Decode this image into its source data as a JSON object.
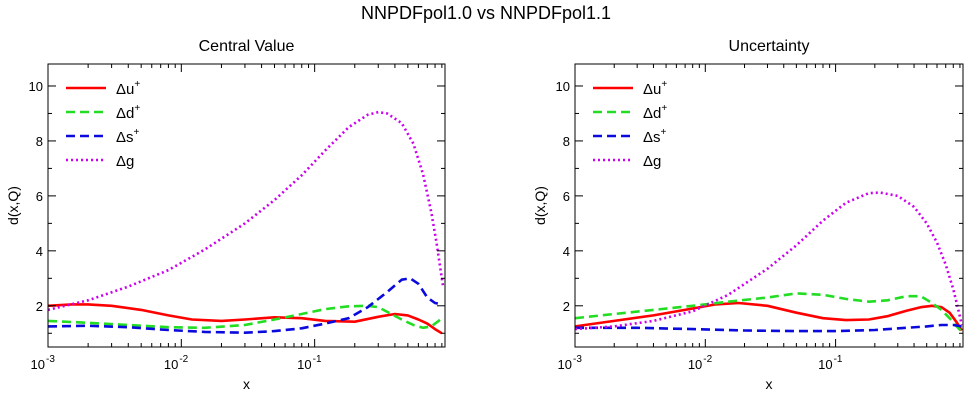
{
  "figure": {
    "title": "NNPDFpol1.0 vs NNPDFpol1.1"
  },
  "chart_data": [
    {
      "type": "line",
      "title": "Central Value",
      "xlabel": "x",
      "ylabel": "d(x,Q)",
      "xscale": "log",
      "xlim": [
        0.001,
        0.95
      ],
      "ylim": [
        0.5,
        10.8
      ],
      "xticks": [
        {
          "value": 0.001,
          "base": "10",
          "exp": "-3"
        },
        {
          "value": 0.01,
          "base": "10",
          "exp": "-2"
        },
        {
          "value": 0.1,
          "base": "10",
          "exp": "-1"
        }
      ],
      "yticks": [
        2,
        4,
        6,
        8,
        10
      ],
      "legend_position": "top-left",
      "series": [
        {
          "name": "Δu",
          "sup": "+",
          "color": "#ff0000",
          "dash": "solid",
          "x": [
            0.001,
            0.0015,
            0.002,
            0.003,
            0.005,
            0.008,
            0.012,
            0.02,
            0.03,
            0.05,
            0.08,
            0.12,
            0.2,
            0.3,
            0.4,
            0.5,
            0.6,
            0.7,
            0.8,
            0.9
          ],
          "y": [
            2.0,
            2.05,
            2.05,
            2.0,
            1.85,
            1.65,
            1.5,
            1.45,
            1.5,
            1.58,
            1.55,
            1.45,
            1.42,
            1.6,
            1.7,
            1.65,
            1.5,
            1.35,
            1.15,
            1.0
          ]
        },
        {
          "name": "Δd",
          "sup": "+",
          "color": "#22dd22",
          "dash": "dashed",
          "x": [
            0.001,
            0.002,
            0.004,
            0.008,
            0.015,
            0.03,
            0.05,
            0.08,
            0.12,
            0.18,
            0.25,
            0.3,
            0.35,
            0.45,
            0.55,
            0.65,
            0.75,
            0.85,
            0.9
          ],
          "y": [
            1.45,
            1.38,
            1.3,
            1.22,
            1.2,
            1.3,
            1.5,
            1.7,
            1.88,
            1.98,
            2.0,
            1.95,
            1.78,
            1.5,
            1.3,
            1.2,
            1.25,
            1.45,
            1.55
          ]
        },
        {
          "name": "Δs",
          "sup": "+",
          "color": "#0a0add",
          "dash": "dashed",
          "x": [
            0.001,
            0.002,
            0.004,
            0.008,
            0.015,
            0.03,
            0.05,
            0.08,
            0.12,
            0.18,
            0.25,
            0.35,
            0.45,
            0.52,
            0.6,
            0.7,
            0.8,
            0.9
          ],
          "y": [
            1.25,
            1.27,
            1.22,
            1.12,
            1.05,
            1.02,
            1.08,
            1.18,
            1.35,
            1.55,
            1.95,
            2.5,
            2.95,
            3.0,
            2.8,
            2.3,
            2.1,
            2.05
          ]
        },
        {
          "name": "Δg",
          "sup": "",
          "color": "#cc00ee",
          "dash": "dotted",
          "x": [
            0.001,
            0.002,
            0.004,
            0.008,
            0.015,
            0.03,
            0.05,
            0.08,
            0.12,
            0.18,
            0.25,
            0.3,
            0.35,
            0.45,
            0.55,
            0.65,
            0.75,
            0.82,
            0.88,
            0.92
          ],
          "y": [
            1.85,
            2.2,
            2.7,
            3.3,
            4.05,
            5.0,
            5.85,
            6.75,
            7.65,
            8.5,
            8.95,
            9.05,
            9.0,
            8.65,
            7.9,
            6.8,
            5.4,
            4.3,
            3.3,
            2.7
          ]
        }
      ]
    },
    {
      "type": "line",
      "title": "Uncertainty",
      "xlabel": "x",
      "ylabel": "d(x,Q)",
      "xscale": "log",
      "xlim": [
        0.001,
        0.95
      ],
      "ylim": [
        0.5,
        10.8
      ],
      "xticks": [
        {
          "value": 0.001,
          "base": "10",
          "exp": "-3"
        },
        {
          "value": 0.01,
          "base": "10",
          "exp": "-2"
        },
        {
          "value": 0.1,
          "base": "10",
          "exp": "-1"
        }
      ],
      "yticks": [
        2,
        4,
        6,
        8,
        10
      ],
      "legend_position": "top-left",
      "series": [
        {
          "name": "Δu",
          "sup": "+",
          "color": "#ff0000",
          "dash": "solid",
          "x": [
            0.001,
            0.002,
            0.004,
            0.008,
            0.012,
            0.018,
            0.03,
            0.05,
            0.08,
            0.12,
            0.18,
            0.25,
            0.35,
            0.45,
            0.55,
            0.65,
            0.75,
            0.85,
            0.93
          ],
          "y": [
            1.25,
            1.45,
            1.65,
            1.9,
            2.05,
            2.1,
            2.0,
            1.75,
            1.55,
            1.48,
            1.5,
            1.62,
            1.82,
            1.95,
            2.0,
            1.95,
            1.75,
            1.4,
            1.1
          ]
        },
        {
          "name": "Δd",
          "sup": "+",
          "color": "#22dd22",
          "dash": "dashed",
          "x": [
            0.001,
            0.002,
            0.004,
            0.008,
            0.015,
            0.03,
            0.05,
            0.08,
            0.12,
            0.18,
            0.25,
            0.35,
            0.45,
            0.55,
            0.65,
            0.75,
            0.85,
            0.93
          ],
          "y": [
            1.55,
            1.7,
            1.85,
            2.0,
            2.15,
            2.3,
            2.45,
            2.4,
            2.25,
            2.15,
            2.2,
            2.35,
            2.35,
            2.1,
            1.85,
            1.55,
            1.25,
            1.05
          ]
        },
        {
          "name": "Δs",
          "sup": "+",
          "color": "#0a0add",
          "dash": "dashed",
          "x": [
            0.001,
            0.003,
            0.008,
            0.02,
            0.05,
            0.1,
            0.2,
            0.35,
            0.5,
            0.65,
            0.8,
            0.93
          ],
          "y": [
            1.2,
            1.2,
            1.15,
            1.1,
            1.08,
            1.08,
            1.12,
            1.2,
            1.25,
            1.3,
            1.3,
            1.25
          ]
        },
        {
          "name": "Δg",
          "sup": "",
          "color": "#cc00ee",
          "dash": "dotted",
          "x": [
            0.001,
            0.002,
            0.004,
            0.008,
            0.015,
            0.03,
            0.05,
            0.08,
            0.12,
            0.18,
            0.22,
            0.3,
            0.4,
            0.5,
            0.6,
            0.7,
            0.8,
            0.88,
            0.93
          ],
          "y": [
            1.15,
            1.25,
            1.45,
            1.8,
            2.4,
            3.35,
            4.2,
            5.1,
            5.75,
            6.1,
            6.12,
            6.0,
            5.6,
            5.0,
            4.3,
            3.5,
            2.6,
            1.8,
            1.3
          ]
        }
      ]
    }
  ]
}
